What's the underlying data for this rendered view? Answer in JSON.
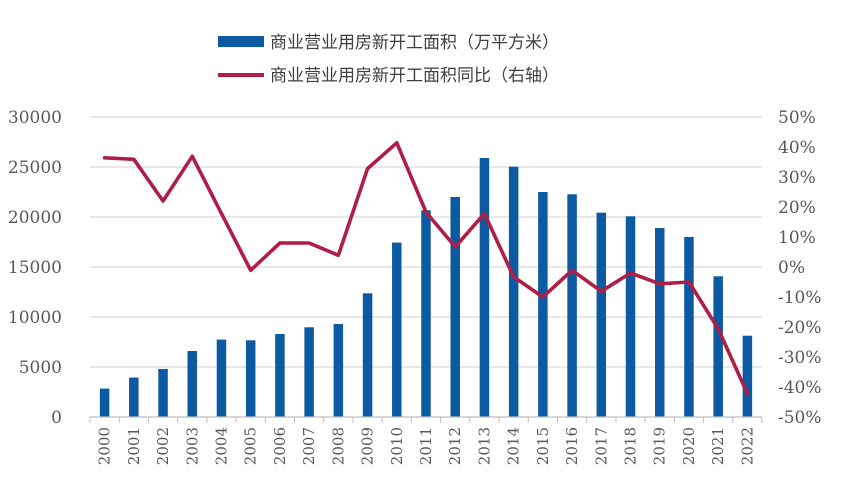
{
  "chart_data": {
    "type": "bar+line",
    "title": "",
    "categories": [
      "2000",
      "2001",
      "2002",
      "2003",
      "2004",
      "2005",
      "2006",
      "2007",
      "2008",
      "2009",
      "2010",
      "2011",
      "2012",
      "2013",
      "2014",
      "2015",
      "2016",
      "2017",
      "2018",
      "2019",
      "2020",
      "2021",
      "2022"
    ],
    "series": [
      {
        "name": "商业营业用房新开工面积（万平方米）",
        "type": "bar",
        "axis": "left",
        "color": "#0B5AA2",
        "values": [
          2840,
          3940,
          4800,
          6600,
          7740,
          7670,
          8300,
          8970,
          9300,
          12370,
          17440,
          20670,
          22000,
          25900,
          25030,
          22500,
          22270,
          20430,
          20070,
          18900,
          18000,
          14070,
          8130
        ]
      },
      {
        "name": "商业营业用房新开工面积同比（右轴）",
        "type": "line",
        "axis": "right",
        "color": "#B01E45",
        "values": [
          36.4,
          35.9,
          22.0,
          36.9,
          17.8,
          -1.1,
          8.0,
          8.0,
          3.9,
          32.8,
          41.4,
          18.3,
          6.7,
          17.8,
          -3.3,
          -10.0,
          -1.1,
          -8.1,
          -2.0,
          -5.6,
          -5.0,
          -20.6,
          -42.2
        ]
      }
    ],
    "left_axis": {
      "ylim": [
        0,
        30000
      ],
      "ticks": [
        "0",
        "5000",
        "10000",
        "15000",
        "20000",
        "25000",
        "30000"
      ]
    },
    "right_axis": {
      "ylim": [
        -50,
        50
      ],
      "ticks": [
        "-50%",
        "-40%",
        "-30%",
        "-20%",
        "-10%",
        "0%",
        "10%",
        "20%",
        "30%",
        "40%",
        "50%"
      ]
    },
    "grid": true,
    "legend": "top-center"
  }
}
